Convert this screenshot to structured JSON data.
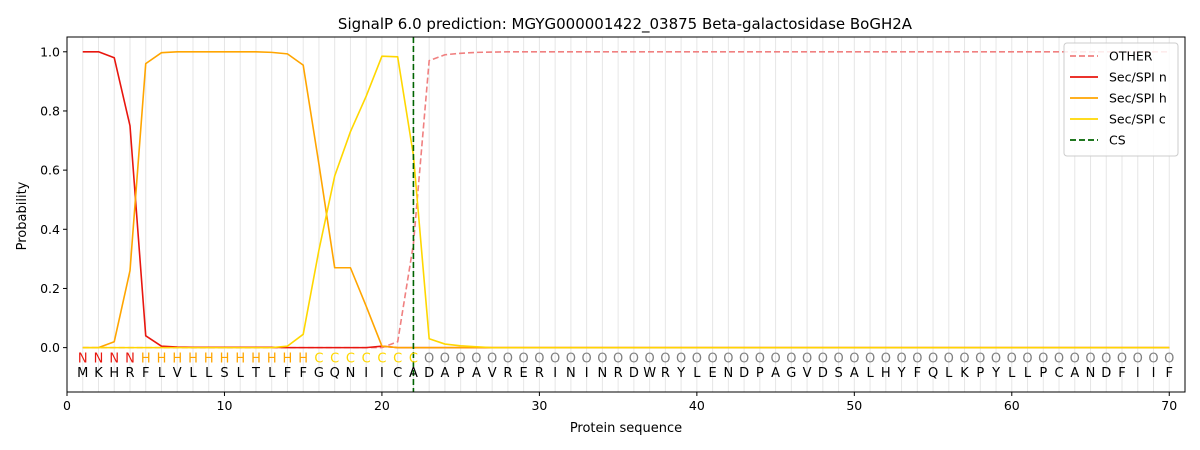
{
  "chart_data": {
    "type": "line",
    "title": "SignalP 6.0 prediction: MGYG000001422_03875 Beta-galactosidase BoGH2A",
    "xlabel": "Protein sequence",
    "ylabel": "Probability",
    "xlim": [
      0,
      71
    ],
    "ylim": [
      -0.15,
      1.05
    ],
    "x_ticks": [
      0,
      10,
      20,
      30,
      40,
      50,
      60,
      70
    ],
    "y_ticks": [
      0.0,
      0.2,
      0.4,
      0.6,
      0.8,
      1.0
    ],
    "x_tick_labels": [
      "0",
      "10",
      "20",
      "30",
      "40",
      "50",
      "60",
      "70"
    ],
    "y_tick_labels": [
      "0.0",
      "0.2",
      "0.4",
      "0.6",
      "0.8",
      "1.0"
    ],
    "sequence": [
      "M",
      "K",
      "H",
      "R",
      "F",
      "L",
      "V",
      "L",
      "L",
      "S",
      "L",
      "T",
      "L",
      "F",
      "F",
      "G",
      "Q",
      "N",
      "I",
      "I",
      "C",
      "A",
      "D",
      "A",
      "P",
      "A",
      "V",
      "R",
      "E",
      "R",
      "I",
      "N",
      "I",
      "N",
      "R",
      "D",
      "W",
      "R",
      "Y",
      "L",
      "E",
      "N",
      "D",
      "P",
      "A",
      "G",
      "V",
      "D",
      "S",
      "A",
      "L",
      "H",
      "Y",
      "F",
      "Q",
      "L",
      "K",
      "P",
      "Y",
      "L",
      "L",
      "P",
      "C",
      "A",
      "N",
      "D",
      "F",
      "I",
      "I",
      "F"
    ],
    "labels": [
      "N",
      "N",
      "N",
      "N",
      "H",
      "H",
      "H",
      "H",
      "H",
      "H",
      "H",
      "H",
      "H",
      "H",
      "H",
      "C",
      "C",
      "C",
      "C",
      "C",
      "C",
      "C",
      "O",
      "O",
      "O",
      "O",
      "O",
      "O",
      "O",
      "O",
      "O",
      "O",
      "O",
      "O",
      "O",
      "O",
      "O",
      "O",
      "O",
      "O",
      "O",
      "O",
      "O",
      "O",
      "O",
      "O",
      "O",
      "O",
      "O",
      "O",
      "O",
      "O",
      "O",
      "O",
      "O",
      "O",
      "O",
      "O",
      "O",
      "O",
      "O",
      "O",
      "O",
      "O",
      "O",
      "O",
      "O",
      "O",
      "O",
      "O"
    ],
    "label_colors": {
      "N": "#e8160e",
      "H": "#ffa500",
      "C": "#ffd700",
      "O": "#808080"
    },
    "cs_position": 22,
    "legend_position": "upper right",
    "series": [
      {
        "name": "OTHER",
        "color": "#f08080",
        "dash": "dashed",
        "values": [
          0.0,
          0.0,
          0.0,
          0.0,
          0.0,
          0.0,
          0.0,
          0.0,
          0.0,
          0.0,
          0.0,
          0.0,
          0.0,
          0.0,
          0.0,
          0.0,
          0.0,
          0.0,
          0.0,
          0.0,
          0.02,
          0.35,
          0.97,
          0.99,
          0.995,
          0.998,
          0.999,
          1.0,
          1.0,
          1.0,
          1.0,
          1.0,
          1.0,
          1.0,
          1.0,
          1.0,
          1.0,
          1.0,
          1.0,
          1.0,
          1.0,
          1.0,
          1.0,
          1.0,
          1.0,
          1.0,
          1.0,
          1.0,
          1.0,
          1.0,
          1.0,
          1.0,
          1.0,
          1.0,
          1.0,
          1.0,
          1.0,
          1.0,
          1.0,
          1.0,
          1.0,
          1.0,
          1.0,
          1.0,
          1.0,
          1.0,
          1.0,
          1.0,
          1.0,
          1.0
        ]
      },
      {
        "name": "Sec/SPI n",
        "color": "#e8160e",
        "dash": "solid",
        "values": [
          1.0,
          1.0,
          0.98,
          0.75,
          0.04,
          0.005,
          0.002,
          0.001,
          0.001,
          0.001,
          0.001,
          0.001,
          0.001,
          0.0,
          0.0,
          0.0,
          0.0,
          0.0,
          0.0,
          0.005,
          0.0,
          0.0,
          0.0,
          0.0,
          0.0,
          0.0,
          0.0,
          0.0,
          0.0,
          0.0,
          0.0,
          0.0,
          0.0,
          0.0,
          0.0,
          0.0,
          0.0,
          0.0,
          0.0,
          0.0,
          0.0,
          0.0,
          0.0,
          0.0,
          0.0,
          0.0,
          0.0,
          0.0,
          0.0,
          0.0,
          0.0,
          0.0,
          0.0,
          0.0,
          0.0,
          0.0,
          0.0,
          0.0,
          0.0,
          0.0,
          0.0,
          0.0,
          0.0,
          0.0,
          0.0,
          0.0,
          0.0,
          0.0,
          0.0,
          0.0
        ]
      },
      {
        "name": "Sec/SPI h",
        "color": "#ffa500",
        "dash": "solid",
        "values": [
          0.0,
          0.0,
          0.02,
          0.26,
          0.96,
          0.997,
          1.0,
          1.0,
          1.0,
          1.0,
          1.0,
          1.0,
          0.998,
          0.993,
          0.955,
          0.62,
          0.27,
          0.27,
          0.14,
          0.005,
          0.0,
          0.0,
          0.0,
          0.0,
          0.0,
          0.0,
          0.0,
          0.0,
          0.0,
          0.0,
          0.0,
          0.0,
          0.0,
          0.0,
          0.0,
          0.0,
          0.0,
          0.0,
          0.0,
          0.0,
          0.0,
          0.0,
          0.0,
          0.0,
          0.0,
          0.0,
          0.0,
          0.0,
          0.0,
          0.0,
          0.0,
          0.0,
          0.0,
          0.0,
          0.0,
          0.0,
          0.0,
          0.0,
          0.0,
          0.0,
          0.0,
          0.0,
          0.0,
          0.0,
          0.0,
          0.0,
          0.0,
          0.0,
          0.0,
          0.0
        ]
      },
      {
        "name": "Sec/SPI c",
        "color": "#ffd700",
        "dash": "solid",
        "values": [
          0.0,
          0.0,
          0.0,
          0.0,
          0.0,
          0.0,
          0.0,
          0.0,
          0.0,
          0.0,
          0.0,
          0.0,
          0.0,
          0.005,
          0.045,
          0.33,
          0.58,
          0.73,
          0.85,
          0.985,
          0.983,
          0.65,
          0.03,
          0.012,
          0.006,
          0.003,
          0.0,
          0.0,
          0.0,
          0.0,
          0.0,
          0.0,
          0.0,
          0.0,
          0.0,
          0.0,
          0.0,
          0.0,
          0.0,
          0.0,
          0.0,
          0.0,
          0.0,
          0.0,
          0.0,
          0.0,
          0.0,
          0.0,
          0.0,
          0.0,
          0.0,
          0.0,
          0.0,
          0.0,
          0.0,
          0.0,
          0.0,
          0.0,
          0.0,
          0.0,
          0.0,
          0.0,
          0.0,
          0.0,
          0.0,
          0.0,
          0.0,
          0.0,
          0.0,
          0.0
        ]
      }
    ],
    "cs_legend": {
      "name": "CS",
      "color": "#006400",
      "dash": "dashed"
    }
  }
}
